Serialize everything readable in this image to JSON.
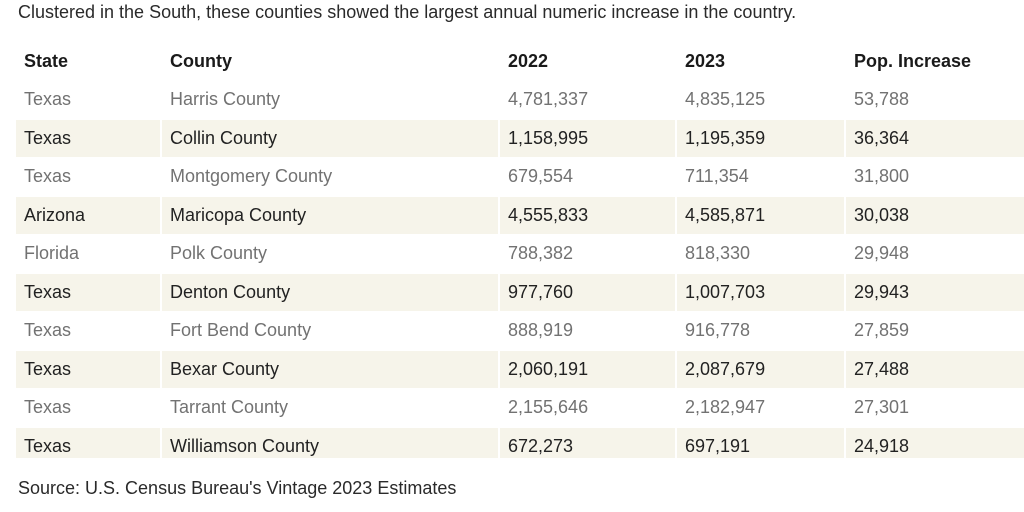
{
  "subtitle": "Clustered in the South, these counties showed the largest annual numeric increase in the country.",
  "table": {
    "headers": {
      "state": "State",
      "county": "County",
      "y2022": "2022",
      "y2023": "2023",
      "increase": "Pop. Increase"
    },
    "rows": [
      {
        "state": "Texas",
        "county": "Harris County",
        "y2022": "4,781,337",
        "y2023": "4,835,125",
        "increase": "53,788"
      },
      {
        "state": "Texas",
        "county": "Collin County",
        "y2022": "1,158,995",
        "y2023": "1,195,359",
        "increase": "36,364"
      },
      {
        "state": "Texas",
        "county": "Montgomery County",
        "y2022": "679,554",
        "y2023": "711,354",
        "increase": "31,800"
      },
      {
        "state": "Arizona",
        "county": "Maricopa County",
        "y2022": "4,555,833",
        "y2023": "4,585,871",
        "increase": "30,038"
      },
      {
        "state": "Florida",
        "county": "Polk County",
        "y2022": "788,382",
        "y2023": "818,330",
        "increase": "29,948"
      },
      {
        "state": "Texas",
        "county": "Denton County",
        "y2022": "977,760",
        "y2023": "1,007,703",
        "increase": "29,943"
      },
      {
        "state": "Texas",
        "county": "Fort Bend County",
        "y2022": "888,919",
        "y2023": "916,778",
        "increase": "27,859"
      },
      {
        "state": "Texas",
        "county": "Bexar County",
        "y2022": "2,060,191",
        "y2023": "2,087,679",
        "increase": "27,488"
      },
      {
        "state": "Texas",
        "county": "Tarrant County",
        "y2022": "2,155,646",
        "y2023": "2,182,947",
        "increase": "27,301"
      },
      {
        "state": "Texas",
        "county": "Williamson County",
        "y2022": "672,273",
        "y2023": "697,191",
        "increase": "24,918"
      }
    ]
  },
  "source": "Source: U.S. Census Bureau's Vintage 2023 Estimates",
  "colors": {
    "band": "#f6f4ea",
    "muted_text": "#727272",
    "strong_text": "#222222"
  }
}
